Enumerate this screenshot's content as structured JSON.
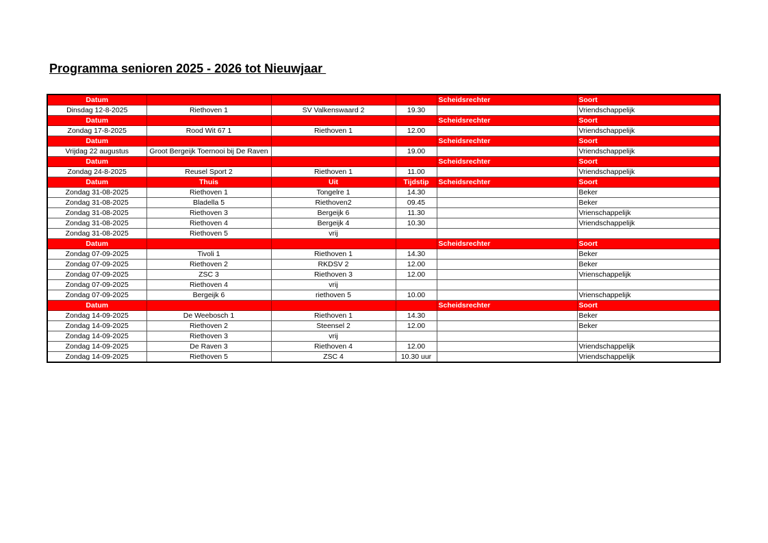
{
  "title": "Programma senioren 2025 - 2026 tot Nieuwjaar ",
  "colors": {
    "header_bg": "#ff0000",
    "header_text": "#ffffff"
  },
  "sections": [
    {
      "header": [
        "Datum",
        "",
        "",
        "",
        "Scheidsrechter",
        "Soort"
      ],
      "rows": [
        [
          "Dinsdag 12-8-2025",
          "Riethoven 1",
          "SV Valkenswaard 2",
          "19.30",
          "",
          "Vriendschappelijk"
        ]
      ]
    },
    {
      "header": [
        "Datum",
        "",
        "",
        "",
        "Scheidsrechter",
        "Soort"
      ],
      "rows": [
        [
          "Zondag 17-8-2025",
          "Rood Wit 67 1",
          "Riethoven 1",
          "12.00",
          "",
          "Vriendschappelijk"
        ]
      ]
    },
    {
      "header": [
        "Datum",
        "",
        "",
        "",
        "Scheidsrechter",
        "Soort"
      ],
      "rows": [
        [
          "Vrijdag 22 augustus",
          "Groot Bergeijk Toernooi bij De Raven",
          "",
          "19.00",
          "",
          "Vriendschappelijk"
        ]
      ]
    },
    {
      "header": [
        "Datum",
        "",
        "",
        "",
        "Scheidsrechter",
        "Soort"
      ],
      "rows": [
        [
          "Zondag 24-8-2025",
          "Reusel Sport 2",
          "Riethoven 1",
          "11.00",
          "",
          "Vriendschappelijk"
        ]
      ]
    },
    {
      "header": [
        "Datum",
        "Thuis",
        "Uit",
        "Tijdstip",
        "Scheidsrechter",
        "Soort"
      ],
      "rows": [
        [
          "Zondag 31-08-2025",
          "Riethoven 1",
          "Tongelre 1",
          "14.30",
          "",
          "Beker"
        ],
        [
          "Zondag 31-08-2025",
          "Bladella 5",
          "Riethoven2",
          "09.45",
          "",
          "Beker"
        ],
        [
          "Zondag 31-08-2025",
          "Riethoven 3",
          "Bergeijk 6",
          "11.30",
          "",
          "Vrienschappelijk"
        ],
        [
          "Zondag 31-08-2025",
          "Riethoven 4",
          "Bergeijk 4",
          "10.30",
          "",
          "Vriendschappelijk"
        ],
        [
          "Zondag 31-08-2025",
          "Riethoven 5",
          "vrij",
          "",
          "",
          ""
        ]
      ]
    },
    {
      "header": [
        "Datum",
        "",
        "",
        "",
        "Scheidsrechter",
        "Soort"
      ],
      "rows": [
        [
          "Zondag 07-09-2025",
          "Tivoli 1",
          "Riethoven 1",
          "14.30",
          "",
          "Beker"
        ],
        [
          "Zondag 07-09-2025",
          "Riethoven 2",
          "RKDSV 2",
          "12.00",
          "",
          "Beker"
        ],
        [
          "Zondag 07-09-2025",
          "ZSC 3",
          "Riethoven 3",
          "12.00",
          "",
          "Vrienschappelijk"
        ],
        [
          "Zondag 07-09-2025",
          "Riethoven 4",
          "vrij",
          "",
          "",
          ""
        ],
        [
          "Zondag 07-09-2025",
          "Bergeijk 6",
          "riethoven 5",
          "10.00",
          "",
          "Vrienschappelijk"
        ]
      ]
    },
    {
      "header": [
        "Datum",
        "",
        "",
        "",
        "Scheidsrechter",
        "Soort"
      ],
      "rows": [
        [
          "Zondag 14-09-2025",
          "De Weebosch 1",
          "Riethoven 1",
          "14.30",
          "",
          "Beker"
        ],
        [
          "Zondag 14-09-2025",
          "Riethoven 2",
          "Steensel 2",
          "12.00",
          "",
          "Beker"
        ],
        [
          "Zondag 14-09-2025",
          "Riethoven 3",
          "vrij",
          "",
          "",
          ""
        ],
        [
          "Zondag 14-09-2025",
          "De Raven 3",
          "Riethoven 4",
          "12.00",
          "",
          "Vriendschappelijk"
        ],
        [
          "Zondag 14-09-2025",
          "Riethoven 5",
          "ZSC 4",
          "10.30 uur",
          "",
          "Vriendschappelijk"
        ]
      ]
    }
  ]
}
